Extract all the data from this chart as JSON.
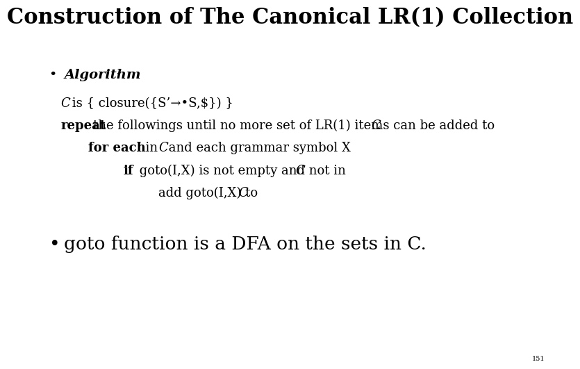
{
  "title": "Construction of The Canonical LR(1) Collection",
  "background_color": "#ffffff",
  "title_fontsize": 22,
  "page_number": "151",
  "content_fontsize": 13,
  "bullet2_fontsize": 19,
  "small_fontsize": 7
}
